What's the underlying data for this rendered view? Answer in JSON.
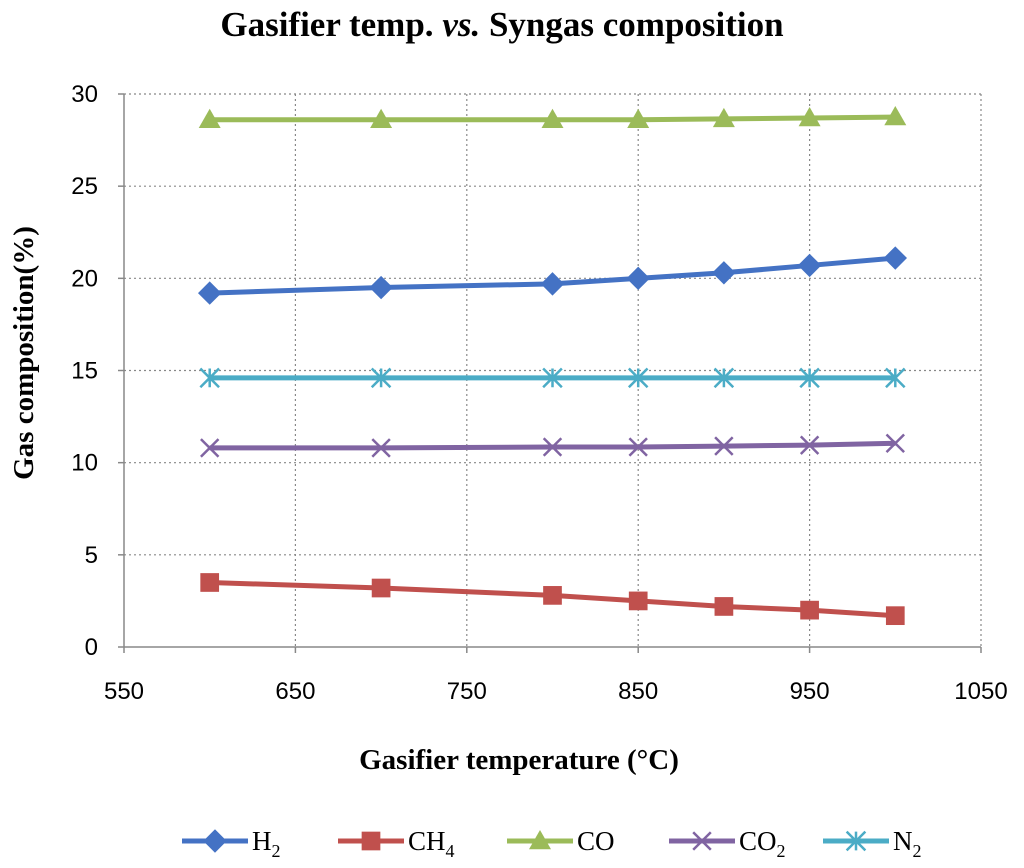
{
  "chart_data": {
    "type": "line",
    "title": "Gasifier temp. vs. Syngas composition",
    "title_parts": {
      "pre": "Gasifier temp. ",
      "italic": "vs.",
      "post": " Syngas composition"
    },
    "xlabel": "Gasifier temperature (°C)",
    "ylabel": "Gas composition(%)",
    "xlim": [
      550,
      1050
    ],
    "ylim": [
      0,
      30
    ],
    "xticks": [
      550,
      650,
      750,
      850,
      950,
      1050
    ],
    "yticks": [
      0,
      5,
      10,
      15,
      20,
      25,
      30
    ],
    "grid": true,
    "legend_position": "bottom",
    "x": [
      600,
      700,
      800,
      850,
      900,
      950,
      1000
    ],
    "series": [
      {
        "name": "H2",
        "label": "H",
        "subscript": "2",
        "color": "#4472C4",
        "marker": "diamond",
        "values": [
          19.2,
          19.5,
          19.7,
          20.0,
          20.3,
          20.7,
          21.1
        ]
      },
      {
        "name": "CH4",
        "label": "CH",
        "subscript": "4",
        "color": "#C0504D",
        "marker": "square",
        "values": [
          3.5,
          3.2,
          2.8,
          2.5,
          2.2,
          2.0,
          1.7
        ]
      },
      {
        "name": "CO",
        "label": "CO",
        "subscript": "",
        "color": "#9BBB59",
        "marker": "triangle",
        "values": [
          28.6,
          28.6,
          28.6,
          28.6,
          28.65,
          28.7,
          28.75
        ]
      },
      {
        "name": "CO2",
        "label": "CO",
        "subscript": "2",
        "color": "#8064A2",
        "marker": "x",
        "values": [
          10.8,
          10.8,
          10.85,
          10.85,
          10.9,
          10.95,
          11.05
        ]
      },
      {
        "name": "N2",
        "label": "N",
        "subscript": "2",
        "color": "#4BACC6",
        "marker": "star",
        "values": [
          14.6,
          14.6,
          14.6,
          14.6,
          14.6,
          14.6,
          14.6
        ]
      }
    ]
  }
}
